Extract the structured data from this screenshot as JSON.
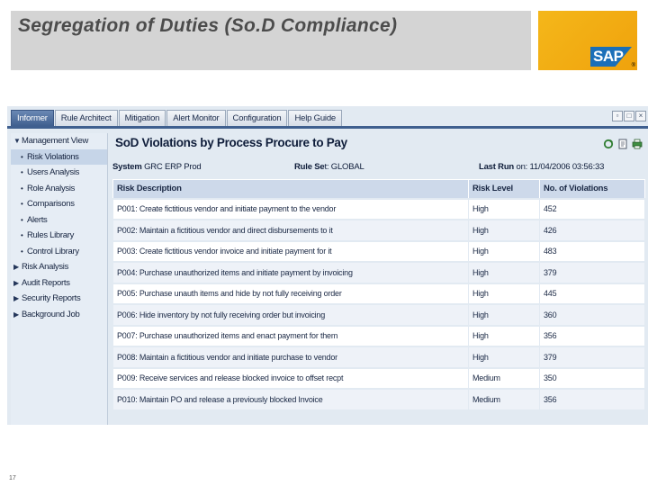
{
  "slide": {
    "title": "Segregation of Duties (So.D Compliance)",
    "page_number": "17",
    "logo_text": "SAP",
    "logo_mark": "®"
  },
  "tabs": [
    {
      "label": "Informer",
      "active": true
    },
    {
      "label": "Rule Architect",
      "active": false
    },
    {
      "label": "Mitigation",
      "active": false
    },
    {
      "label": "Alert Monitor",
      "active": false
    },
    {
      "label": "Configuration",
      "active": false
    },
    {
      "label": "Help Guide",
      "active": false
    }
  ],
  "window_controls": [
    "restore-icon",
    "maximize-icon",
    "close-icon"
  ],
  "sidebar": {
    "management_view": "Management View",
    "sub_items": [
      "Risk Violations",
      "Users Analysis",
      "Role Analysis",
      "Comparisons",
      "Alerts",
      "Rules Library",
      "Control Library"
    ],
    "top_items": [
      "Risk Analysis",
      "Audit Reports",
      "Security Reports",
      "Background Job"
    ]
  },
  "content": {
    "title": "SoD Violations by Process Procure to Pay",
    "system_label": "System",
    "system_value": "GRC ERP Prod",
    "ruleset_label": "Rule Se",
    "ruleset_suffix": "t: GLOBAL",
    "lastrun_label": "Last Run",
    "lastrun_value": "on: 11/04/2006 03:56:33",
    "icons": [
      "refresh-icon",
      "export-icon",
      "print-icon"
    ]
  },
  "table": {
    "headers": [
      "Risk Description",
      "Risk Level",
      "No. of Violations"
    ],
    "rows": [
      {
        "desc": "P001: Create fictitious vendor and initiate payment to the vendor",
        "level": "High",
        "count": "452"
      },
      {
        "desc": "P002: Maintain a fictitious vendor and direct disbursements to it",
        "level": "High",
        "count": "426"
      },
      {
        "desc": "P003: Create fictitious vendor invoice and initiate payment for it",
        "level": "High",
        "count": "483"
      },
      {
        "desc": "P004: Purchase unauthorized items and initiate payment by invoicing",
        "level": "High",
        "count": "379"
      },
      {
        "desc": "P005: Purchase unauth items and hide by not fully receiving order",
        "level": "High",
        "count": "445"
      },
      {
        "desc": "P006: Hide inventory by not fully receiving order but invoicing",
        "level": "High",
        "count": "360"
      },
      {
        "desc": "P007: Purchase unauthorized items and enact payment for them",
        "level": "High",
        "count": "356"
      },
      {
        "desc": "P008: Maintain a fictitious vendor and initiate purchase to vendor",
        "level": "High",
        "count": "379"
      },
      {
        "desc": "P009: Receive services and release blocked invoice to offset recpt",
        "level": "Medium",
        "count": "350"
      },
      {
        "desc": "P010: Maintain PO and release a previously blocked Invoice",
        "level": "Medium",
        "count": "356"
      }
    ]
  }
}
